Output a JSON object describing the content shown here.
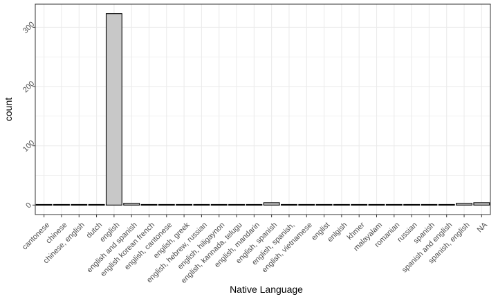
{
  "chart_data": {
    "type": "bar",
    "xlabel": "Native Language",
    "ylabel": "count",
    "ylim": [
      -16,
      339
    ],
    "yticks": [
      0,
      100,
      200,
      300
    ],
    "grid": true,
    "categories": [
      "cantonese",
      "chinese",
      "chinese, english",
      "dutch",
      "english",
      "english and spanish",
      "english korean french",
      "english, cantonese",
      "english, greek",
      "english, hebrew, russian",
      "english, hiligaynon",
      "english, kannada, telugu",
      "english, mandarin",
      "english, spanish",
      "english, spanish,",
      "english, vietnamese",
      "englist",
      "enlgish",
      "khmer",
      "malayalam",
      "romanian",
      "russian",
      "spanish",
      "spanish and english",
      "spanish, english",
      "NA"
    ],
    "values": [
      1,
      1,
      1,
      1,
      323,
      3,
      1,
      1,
      1,
      1,
      1,
      1,
      1,
      4,
      1,
      1,
      1,
      1,
      1,
      1,
      1,
      1,
      1,
      1,
      3,
      4
    ],
    "colors": {
      "bar_fill": "#c8c8c8",
      "bar_stroke": "#000000",
      "panel_border": "#333333",
      "grid": "#ebebeb"
    }
  }
}
